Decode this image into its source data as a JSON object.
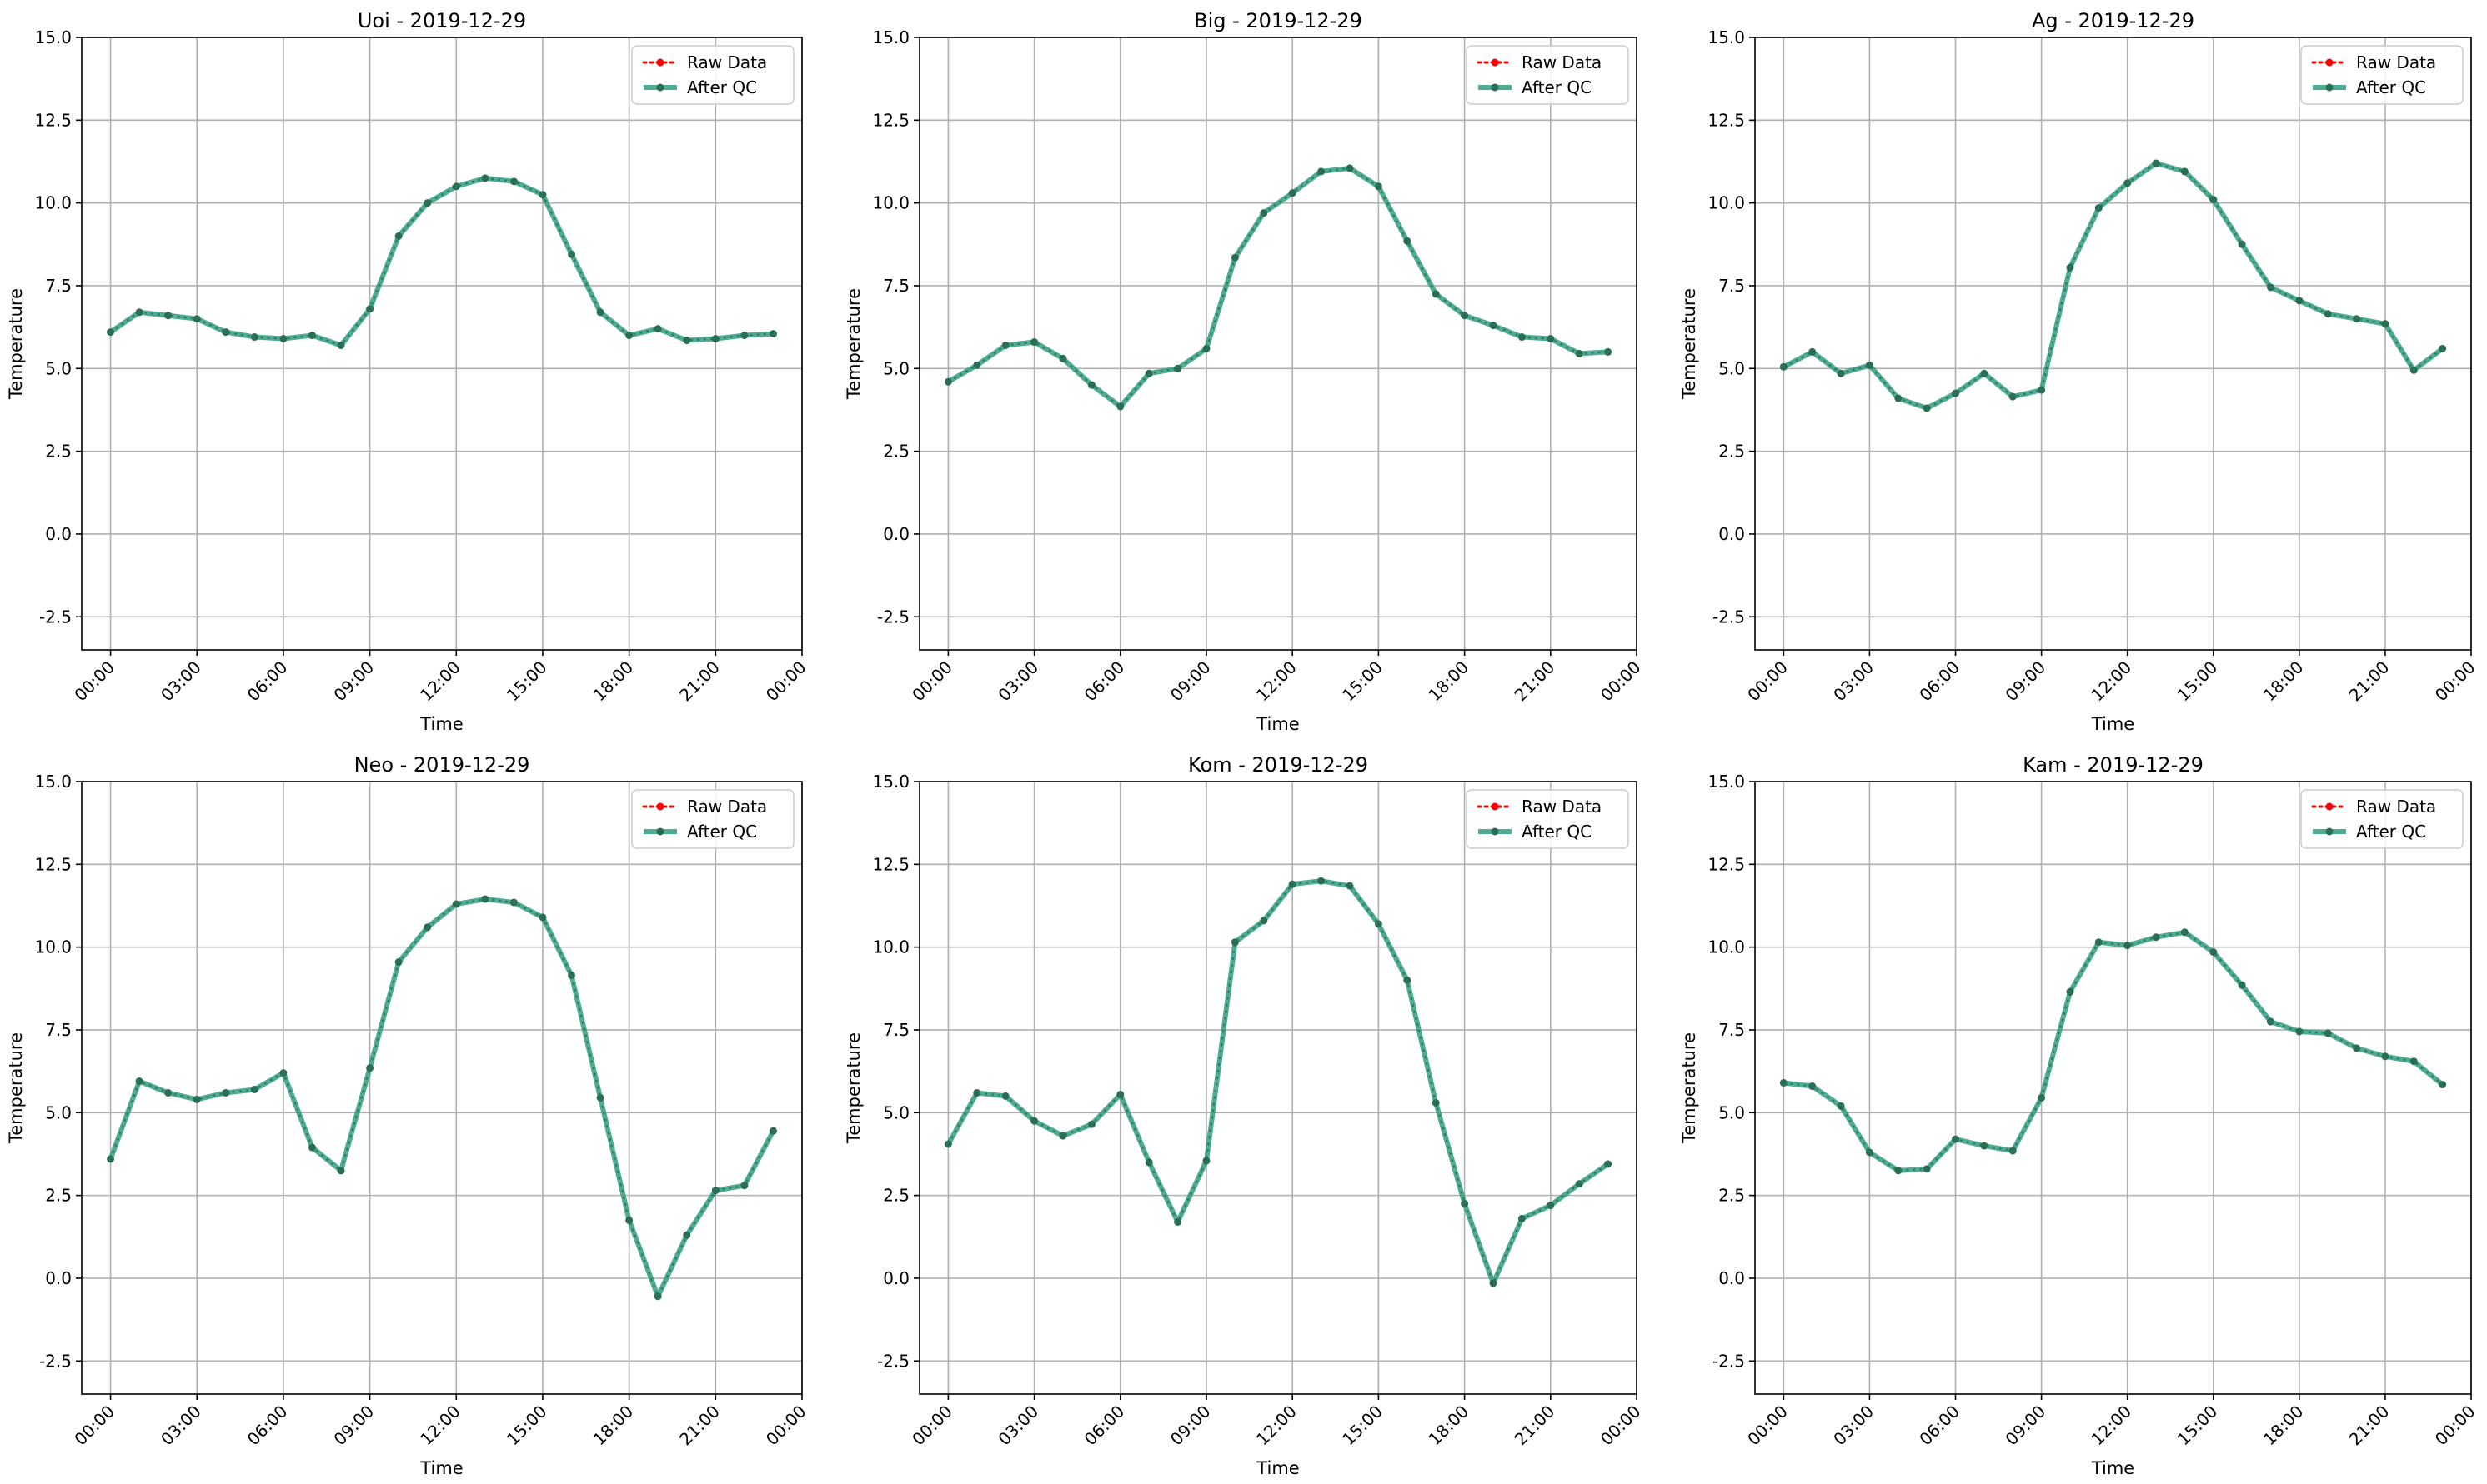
{
  "legend": {
    "raw_label": "Raw Data",
    "qc_label": "After QC",
    "position": "top-right"
  },
  "colors": {
    "raw": "#ff0000",
    "qc": "#2e9e80",
    "marker": "#2a6e55",
    "grid": "#b0b0b0",
    "axis": "#000000"
  },
  "chart_data": [
    {
      "type": "line",
      "title": "Uoi - 2019-12-29",
      "xlabel": "Time",
      "ylabel": "Temperature",
      "x_range": [
        "2019-12-28T23:00",
        "2019-12-30T00:00"
      ],
      "ylim": [
        -3.5,
        15
      ],
      "yticks": [
        -2.5,
        0.0,
        2.5,
        5.0,
        7.5,
        10.0,
        12.5,
        15.0
      ],
      "xtick_labels": [
        "00:00",
        "03:00",
        "06:00",
        "09:00",
        "12:00",
        "15:00",
        "18:00",
        "21:00",
        "00:00"
      ],
      "grid": true,
      "x": [
        "00:00",
        "01:00",
        "02:00",
        "03:00",
        "04:00",
        "05:00",
        "06:00",
        "07:00",
        "08:00",
        "09:00",
        "10:00",
        "11:00",
        "12:00",
        "13:00",
        "14:00",
        "15:00",
        "16:00",
        "17:00",
        "18:00",
        "19:00",
        "20:00",
        "21:00",
        "22:00",
        "23:00"
      ],
      "series": [
        {
          "name": "Raw Data",
          "values": [
            6.1,
            6.7,
            6.6,
            6.5,
            6.1,
            5.95,
            5.9,
            6.0,
            5.7,
            6.8,
            9.0,
            10.0,
            10.5,
            10.75,
            10.65,
            10.25,
            8.45,
            6.7,
            6.0,
            6.2,
            5.85,
            5.9,
            6.0,
            6.05
          ]
        },
        {
          "name": "After QC",
          "values": [
            6.1,
            6.7,
            6.6,
            6.5,
            6.1,
            5.95,
            5.9,
            6.0,
            5.7,
            6.8,
            9.0,
            10.0,
            10.5,
            10.75,
            10.65,
            10.25,
            8.45,
            6.7,
            6.0,
            6.2,
            5.85,
            5.9,
            6.0,
            6.05
          ]
        }
      ]
    },
    {
      "type": "line",
      "title": "Big - 2019-12-29",
      "xlabel": "Time",
      "ylabel": "Temperature",
      "x_range": [
        "2019-12-28T23:00",
        "2019-12-30T00:00"
      ],
      "ylim": [
        -3.5,
        15
      ],
      "yticks": [
        -2.5,
        0.0,
        2.5,
        5.0,
        7.5,
        10.0,
        12.5,
        15.0
      ],
      "xtick_labels": [
        "00:00",
        "03:00",
        "06:00",
        "09:00",
        "12:00",
        "15:00",
        "18:00",
        "21:00",
        "00:00"
      ],
      "grid": true,
      "x": [
        "00:00",
        "01:00",
        "02:00",
        "03:00",
        "04:00",
        "05:00",
        "06:00",
        "07:00",
        "08:00",
        "09:00",
        "10:00",
        "11:00",
        "12:00",
        "13:00",
        "14:00",
        "15:00",
        "16:00",
        "17:00",
        "18:00",
        "19:00",
        "20:00",
        "21:00",
        "22:00",
        "23:00"
      ],
      "series": [
        {
          "name": "Raw Data",
          "values": [
            4.6,
            5.1,
            5.7,
            5.8,
            5.3,
            4.5,
            3.85,
            4.85,
            5.0,
            5.6,
            8.35,
            9.7,
            10.3,
            10.95,
            11.05,
            10.5,
            8.85,
            7.25,
            6.6,
            6.3,
            5.95,
            5.9,
            5.45,
            5.5
          ]
        },
        {
          "name": "After QC",
          "values": [
            4.6,
            5.1,
            5.7,
            5.8,
            5.3,
            4.5,
            3.85,
            4.85,
            5.0,
            5.6,
            8.35,
            9.7,
            10.3,
            10.95,
            11.05,
            10.5,
            8.85,
            7.25,
            6.6,
            6.3,
            5.95,
            5.9,
            5.45,
            5.5
          ]
        }
      ]
    },
    {
      "type": "line",
      "title": "Ag - 2019-12-29",
      "xlabel": "Time",
      "ylabel": "Temperature",
      "x_range": [
        "2019-12-28T23:00",
        "2019-12-30T00:00"
      ],
      "ylim": [
        -3.5,
        15
      ],
      "yticks": [
        -2.5,
        0.0,
        2.5,
        5.0,
        7.5,
        10.0,
        12.5,
        15.0
      ],
      "xtick_labels": [
        "00:00",
        "03:00",
        "06:00",
        "09:00",
        "12:00",
        "15:00",
        "18:00",
        "21:00",
        "00:00"
      ],
      "grid": true,
      "x": [
        "00:00",
        "01:00",
        "02:00",
        "03:00",
        "04:00",
        "05:00",
        "06:00",
        "07:00",
        "08:00",
        "09:00",
        "10:00",
        "11:00",
        "12:00",
        "13:00",
        "14:00",
        "15:00",
        "16:00",
        "17:00",
        "18:00",
        "19:00",
        "20:00",
        "21:00",
        "22:00",
        "23:00"
      ],
      "series": [
        {
          "name": "Raw Data",
          "values": [
            5.05,
            5.5,
            4.85,
            5.1,
            4.1,
            3.8,
            4.25,
            4.85,
            4.15,
            4.35,
            8.05,
            9.85,
            10.6,
            11.2,
            10.95,
            10.1,
            8.75,
            7.45,
            7.05,
            6.65,
            6.5,
            6.35,
            4.95,
            5.6
          ]
        },
        {
          "name": "After QC",
          "values": [
            5.05,
            5.5,
            4.85,
            5.1,
            4.1,
            3.8,
            4.25,
            4.85,
            4.15,
            4.35,
            8.05,
            9.85,
            10.6,
            11.2,
            10.95,
            10.1,
            8.75,
            7.45,
            7.05,
            6.65,
            6.5,
            6.35,
            4.95,
            5.6
          ]
        }
      ]
    },
    {
      "type": "line",
      "title": "Neo - 2019-12-29",
      "xlabel": "Time",
      "ylabel": "Temperature",
      "x_range": [
        "2019-12-28T23:00",
        "2019-12-30T00:00"
      ],
      "ylim": [
        -3.5,
        15
      ],
      "yticks": [
        -2.5,
        0.0,
        2.5,
        5.0,
        7.5,
        10.0,
        12.5,
        15.0
      ],
      "xtick_labels": [
        "00:00",
        "03:00",
        "06:00",
        "09:00",
        "12:00",
        "15:00",
        "18:00",
        "21:00",
        "00:00"
      ],
      "grid": true,
      "x": [
        "00:00",
        "01:00",
        "02:00",
        "03:00",
        "04:00",
        "05:00",
        "06:00",
        "07:00",
        "08:00",
        "09:00",
        "10:00",
        "11:00",
        "12:00",
        "13:00",
        "14:00",
        "15:00",
        "16:00",
        "17:00",
        "18:00",
        "19:00",
        "20:00",
        "21:00",
        "22:00",
        "23:00"
      ],
      "series": [
        {
          "name": "Raw Data",
          "values": [
            3.6,
            5.95,
            5.6,
            5.4,
            5.6,
            5.7,
            6.2,
            3.95,
            3.25,
            6.35,
            9.55,
            10.6,
            11.3,
            11.45,
            11.35,
            10.9,
            9.15,
            5.45,
            1.75,
            -0.55,
            1.3,
            2.65,
            2.8,
            4.45
          ]
        },
        {
          "name": "After QC",
          "values": [
            3.6,
            5.95,
            5.6,
            5.4,
            5.6,
            5.7,
            6.2,
            3.95,
            3.25,
            6.35,
            9.55,
            10.6,
            11.3,
            11.45,
            11.35,
            10.9,
            9.15,
            5.45,
            1.75,
            -0.55,
            1.3,
            2.65,
            2.8,
            4.45
          ]
        }
      ]
    },
    {
      "type": "line",
      "title": "Kom - 2019-12-29",
      "xlabel": "Time",
      "ylabel": "Temperature",
      "x_range": [
        "2019-12-28T23:00",
        "2019-12-30T00:00"
      ],
      "ylim": [
        -3.5,
        15
      ],
      "yticks": [
        -2.5,
        0.0,
        2.5,
        5.0,
        7.5,
        10.0,
        12.5,
        15.0
      ],
      "xtick_labels": [
        "00:00",
        "03:00",
        "06:00",
        "09:00",
        "12:00",
        "15:00",
        "18:00",
        "21:00",
        "00:00"
      ],
      "grid": true,
      "x": [
        "00:00",
        "01:00",
        "02:00",
        "03:00",
        "04:00",
        "05:00",
        "06:00",
        "07:00",
        "08:00",
        "09:00",
        "10:00",
        "11:00",
        "12:00",
        "13:00",
        "14:00",
        "15:00",
        "16:00",
        "17:00",
        "18:00",
        "19:00",
        "20:00",
        "21:00",
        "22:00",
        "23:00"
      ],
      "series": [
        {
          "name": "Raw Data",
          "values": [
            4.05,
            5.6,
            5.5,
            4.75,
            4.3,
            4.65,
            5.55,
            3.5,
            1.7,
            3.55,
            10.15,
            10.8,
            11.9,
            12.0,
            11.85,
            10.7,
            9.0,
            5.3,
            2.25,
            -0.15,
            1.8,
            2.2,
            2.85,
            3.45
          ]
        },
        {
          "name": "After QC",
          "values": [
            4.05,
            5.6,
            5.5,
            4.75,
            4.3,
            4.65,
            5.55,
            3.5,
            1.7,
            3.55,
            10.15,
            10.8,
            11.9,
            12.0,
            11.85,
            10.7,
            9.0,
            5.3,
            2.25,
            -0.15,
            1.8,
            2.2,
            2.85,
            3.45
          ]
        }
      ]
    },
    {
      "type": "line",
      "title": "Kam - 2019-12-29",
      "xlabel": "Time",
      "ylabel": "Temperature",
      "x_range": [
        "2019-12-28T23:00",
        "2019-12-30T00:00"
      ],
      "ylim": [
        -3.5,
        15
      ],
      "yticks": [
        -2.5,
        0.0,
        2.5,
        5.0,
        7.5,
        10.0,
        12.5,
        15.0
      ],
      "xtick_labels": [
        "00:00",
        "03:00",
        "06:00",
        "09:00",
        "12:00",
        "15:00",
        "18:00",
        "21:00",
        "00:00"
      ],
      "grid": true,
      "x": [
        "00:00",
        "01:00",
        "02:00",
        "03:00",
        "04:00",
        "05:00",
        "06:00",
        "07:00",
        "08:00",
        "09:00",
        "10:00",
        "11:00",
        "12:00",
        "13:00",
        "14:00",
        "15:00",
        "16:00",
        "17:00",
        "18:00",
        "19:00",
        "20:00",
        "21:00",
        "22:00",
        "23:00"
      ],
      "series": [
        {
          "name": "Raw Data",
          "values": [
            5.9,
            5.8,
            5.2,
            3.8,
            3.25,
            3.3,
            4.2,
            4.0,
            3.85,
            5.45,
            8.65,
            10.15,
            10.05,
            10.3,
            10.45,
            9.85,
            8.85,
            7.75,
            7.45,
            7.4,
            6.95,
            6.7,
            6.55,
            5.85
          ]
        },
        {
          "name": "After QC",
          "values": [
            5.9,
            5.8,
            5.2,
            3.8,
            3.25,
            3.3,
            4.2,
            4.0,
            3.85,
            5.45,
            8.65,
            10.15,
            10.05,
            10.3,
            10.45,
            9.85,
            8.85,
            7.75,
            7.45,
            7.4,
            6.95,
            6.7,
            6.55,
            5.85
          ]
        }
      ]
    }
  ]
}
